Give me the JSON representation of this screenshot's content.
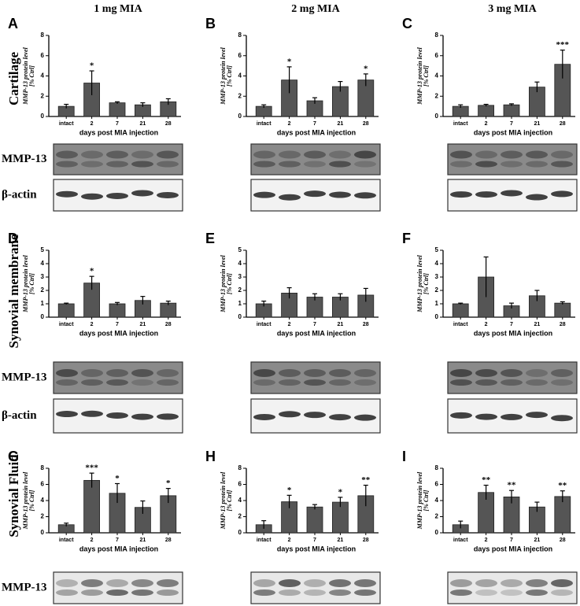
{
  "figure": {
    "column_titles": [
      "1 mg MIA",
      "2 mg MIA",
      "3 mg MIA"
    ],
    "row_titles": [
      "Cartilage",
      "Synovial membrane",
      "Synovial Fluid"
    ],
    "blot_labels": [
      [
        "MMP-13",
        "β-actin"
      ],
      [
        "MMP-13",
        "β-actin"
      ],
      [
        "MMP-13"
      ]
    ]
  },
  "chart_data": [
    {
      "type": "bar",
      "panel": "A",
      "ylabel": [
        "MMP-13 protein level",
        "[% Ctrl]"
      ],
      "xlabel": "days post MIA injection",
      "categories": [
        "intact",
        "2",
        "7",
        "21",
        "28"
      ],
      "values": [
        1.0,
        3.3,
        1.35,
        1.15,
        1.45
      ],
      "errors": [
        0.2,
        1.2,
        0.1,
        0.2,
        0.3
      ],
      "significance": [
        null,
        "*",
        null,
        null,
        null
      ],
      "ylim": [
        0,
        8
      ],
      "yticks": [
        0,
        2,
        4,
        6,
        8
      ],
      "color": "#555555"
    },
    {
      "type": "bar",
      "panel": "B",
      "ylabel": [
        "MMP-13 protein level",
        "[% Ctrl]"
      ],
      "xlabel": "days post MIA injection",
      "categories": [
        "intact",
        "2",
        "7",
        "21",
        "28"
      ],
      "values": [
        1.0,
        3.6,
        1.55,
        2.95,
        3.6
      ],
      "errors": [
        0.15,
        1.3,
        0.3,
        0.5,
        0.6
      ],
      "significance": [
        null,
        "*",
        null,
        null,
        "*"
      ],
      "ylim": [
        0,
        8
      ],
      "yticks": [
        0,
        2,
        4,
        6,
        8
      ],
      "color": "#555555"
    },
    {
      "type": "bar",
      "panel": "C",
      "ylabel": [
        "MMP-13 protein level",
        "[% Ctrl]"
      ],
      "xlabel": "days post MIA injection",
      "categories": [
        "intact",
        "2",
        "7",
        "21",
        "28"
      ],
      "values": [
        1.0,
        1.1,
        1.15,
        2.9,
        5.15
      ],
      "errors": [
        0.15,
        0.1,
        0.1,
        0.5,
        1.4
      ],
      "significance": [
        null,
        null,
        null,
        null,
        "***"
      ],
      "ylim": [
        0,
        8
      ],
      "yticks": [
        0,
        2,
        4,
        6,
        8
      ],
      "color": "#555555"
    },
    {
      "type": "bar",
      "panel": "D",
      "ylabel": [
        "MMP-13 protein level",
        "[% Ctrl]"
      ],
      "xlabel": "days post MIA injection",
      "categories": [
        "intact",
        "2",
        "7",
        "21",
        "28"
      ],
      "values": [
        1.0,
        2.55,
        1.0,
        1.25,
        1.05
      ],
      "errors": [
        0.05,
        0.5,
        0.1,
        0.3,
        0.15
      ],
      "significance": [
        null,
        "*",
        null,
        null,
        null
      ],
      "ylim": [
        0,
        5
      ],
      "yticks": [
        0,
        1,
        2,
        3,
        4,
        5
      ],
      "color": "#555555"
    },
    {
      "type": "bar",
      "panel": "E",
      "ylabel": [
        "MMP-13 protein level",
        "[% Ctrl]"
      ],
      "xlabel": "days post MIA injection",
      "categories": [
        "intact",
        "2",
        "7",
        "21",
        "28"
      ],
      "values": [
        1.0,
        1.8,
        1.5,
        1.5,
        1.65
      ],
      "errors": [
        0.2,
        0.4,
        0.25,
        0.25,
        0.5
      ],
      "significance": [
        null,
        null,
        null,
        null,
        null
      ],
      "ylim": [
        0,
        5
      ],
      "yticks": [
        0,
        1,
        2,
        3,
        4,
        5
      ],
      "color": "#555555"
    },
    {
      "type": "bar",
      "panel": "F",
      "ylabel": [
        "MMP-13 protein level",
        "[% Ctrl]"
      ],
      "xlabel": "days post MIA injection",
      "categories": [
        "intact",
        "2",
        "7",
        "21",
        "28"
      ],
      "values": [
        1.0,
        3.0,
        0.85,
        1.6,
        1.05
      ],
      "errors": [
        0.05,
        1.5,
        0.2,
        0.4,
        0.1
      ],
      "significance": [
        null,
        null,
        null,
        null,
        null
      ],
      "ylim": [
        0,
        5
      ],
      "yticks": [
        0,
        1,
        2,
        3,
        4,
        5
      ],
      "color": "#555555"
    },
    {
      "type": "bar",
      "panel": "G",
      "ylabel": [
        "MMP-13 protein level",
        "[% Ctrl]"
      ],
      "xlabel": "days post MIA injection",
      "categories": [
        "intact",
        "2",
        "7",
        "21",
        "28"
      ],
      "values": [
        1.0,
        6.5,
        4.9,
        3.15,
        4.6
      ],
      "errors": [
        0.2,
        0.9,
        1.2,
        0.8,
        0.9
      ],
      "significance": [
        null,
        "***",
        "*",
        null,
        "*"
      ],
      "ylim": [
        0,
        8
      ],
      "yticks": [
        0,
        2,
        4,
        6,
        8
      ],
      "color": "#555555"
    },
    {
      "type": "bar",
      "panel": "H",
      "ylabel": [
        "MMP-13 protein level",
        "[% Ctrl]"
      ],
      "xlabel": "days post MIA injection",
      "categories": [
        "intact",
        "2",
        "7",
        "21",
        "28"
      ],
      "values": [
        1.0,
        3.85,
        3.2,
        3.8,
        4.6
      ],
      "errors": [
        0.5,
        0.8,
        0.3,
        0.6,
        1.3
      ],
      "significance": [
        null,
        "*",
        null,
        "*",
        "**"
      ],
      "ylim": [
        0,
        8
      ],
      "yticks": [
        0,
        2,
        4,
        6,
        8
      ],
      "color": "#555555"
    },
    {
      "type": "bar",
      "panel": "I",
      "ylabel": [
        "MMP-13 protein level",
        "[% Ctrl]"
      ],
      "xlabel": "days post MIA injection",
      "categories": [
        "intact",
        "2",
        "7",
        "21",
        "28"
      ],
      "values": [
        1.0,
        5.0,
        4.45,
        3.2,
        4.5
      ],
      "errors": [
        0.45,
        0.9,
        0.8,
        0.6,
        0.7
      ],
      "significance": [
        null,
        "**",
        "**",
        null,
        "**"
      ],
      "ylim": [
        0,
        8
      ],
      "yticks": [
        0,
        2,
        4,
        6,
        8
      ],
      "color": "#555555"
    }
  ]
}
